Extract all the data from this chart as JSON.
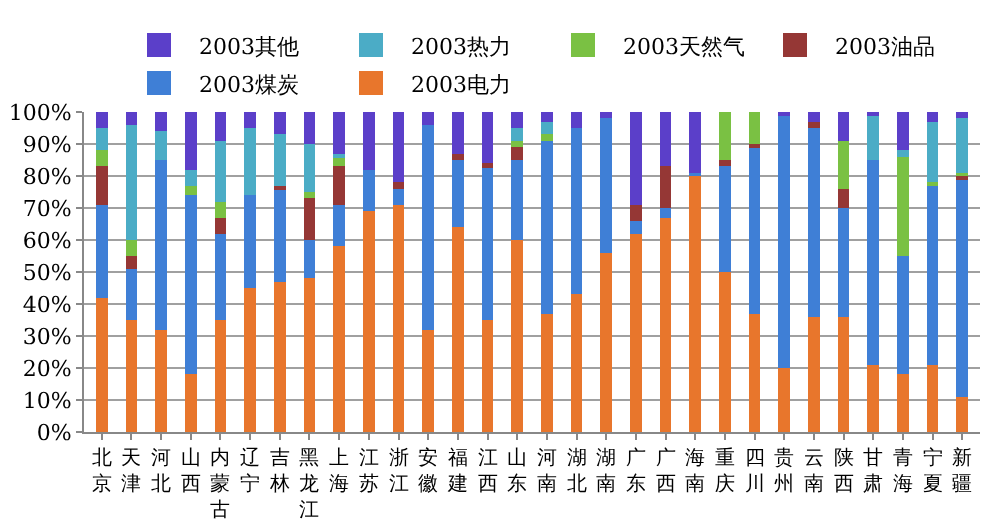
{
  "chart_data": {
    "type": "bar",
    "stacked": true,
    "categories": [
      "北京",
      "天津",
      "河北",
      "山西",
      "内蒙古",
      "辽宁",
      "吉林",
      "黑龙江",
      "上海",
      "江苏",
      "浙江",
      "安徽",
      "福建",
      "江西",
      "山东",
      "河南",
      "湖北",
      "湖南",
      "广东",
      "广西",
      "海南",
      "重庆",
      "四川",
      "贵州",
      "云南",
      "陕西",
      "甘肃",
      "青海",
      "宁夏",
      "新疆"
    ],
    "series": [
      {
        "name": "2003电力",
        "color": "#e8762c",
        "values": [
          42,
          35,
          32,
          18,
          35,
          45,
          47,
          48,
          58,
          69,
          71,
          32,
          64,
          35,
          60,
          37,
          43,
          56,
          62,
          67,
          80,
          50,
          37,
          20,
          36,
          36,
          21,
          18,
          21,
          11
        ]
      },
      {
        "name": "2003煤炭",
        "color": "#3f7fd6",
        "values": [
          29,
          16,
          53,
          56,
          27,
          29,
          29,
          12,
          13,
          13,
          5,
          64,
          21,
          48,
          25,
          54,
          52,
          42,
          4,
          3,
          1,
          33,
          52,
          79,
          59,
          34,
          64,
          37,
          56,
          68
        ]
      },
      {
        "name": "2003油品",
        "color": "#953735",
        "values": [
          12,
          4,
          0,
          0,
          5,
          0,
          1,
          13,
          12,
          0,
          2,
          0,
          2,
          1,
          4,
          0,
          0,
          0,
          5,
          13,
          0,
          2,
          1,
          0,
          2,
          6,
          0,
          0,
          0,
          1
        ]
      },
      {
        "name": "2003天然气",
        "color": "#7ac143",
        "values": [
          5,
          5,
          0,
          3,
          5,
          0,
          0,
          2,
          3,
          0,
          0,
          0,
          0,
          0,
          2,
          2,
          0,
          0,
          0,
          0,
          0,
          15,
          10,
          0,
          0,
          15,
          0,
          31,
          1,
          1
        ]
      },
      {
        "name": "2003热力",
        "color": "#4bacc6",
        "values": [
          7,
          36,
          9,
          5,
          19,
          21,
          16,
          15,
          1,
          0,
          0,
          0,
          0,
          0,
          4,
          4,
          0,
          0,
          0,
          0,
          0,
          0,
          0,
          0,
          0,
          0,
          14,
          2,
          19,
          17
        ]
      },
      {
        "name": "2003其他",
        "color": "#5b3fc9",
        "values": [
          5,
          4,
          6,
          18,
          9,
          5,
          7,
          10,
          13,
          18,
          22,
          4,
          13,
          16,
          5,
          3,
          5,
          2,
          29,
          17,
          19,
          0,
          0,
          1,
          3,
          9,
          1,
          12,
          3,
          2
        ]
      }
    ],
    "ylim": [
      0,
      100
    ],
    "yticks": [
      {
        "value": 0,
        "label": "0%"
      },
      {
        "value": 10,
        "label": "10%"
      },
      {
        "value": 20,
        "label": "20%"
      },
      {
        "value": 30,
        "label": "30%"
      },
      {
        "value": 40,
        "label": "40%"
      },
      {
        "value": 50,
        "label": "50%"
      },
      {
        "value": 60,
        "label": "60%"
      },
      {
        "value": 70,
        "label": "70%"
      },
      {
        "value": 80,
        "label": "80%"
      },
      {
        "value": 90,
        "label": "90%"
      },
      {
        "value": 100,
        "label": "100%"
      }
    ],
    "grid": "y",
    "legend": "top"
  }
}
